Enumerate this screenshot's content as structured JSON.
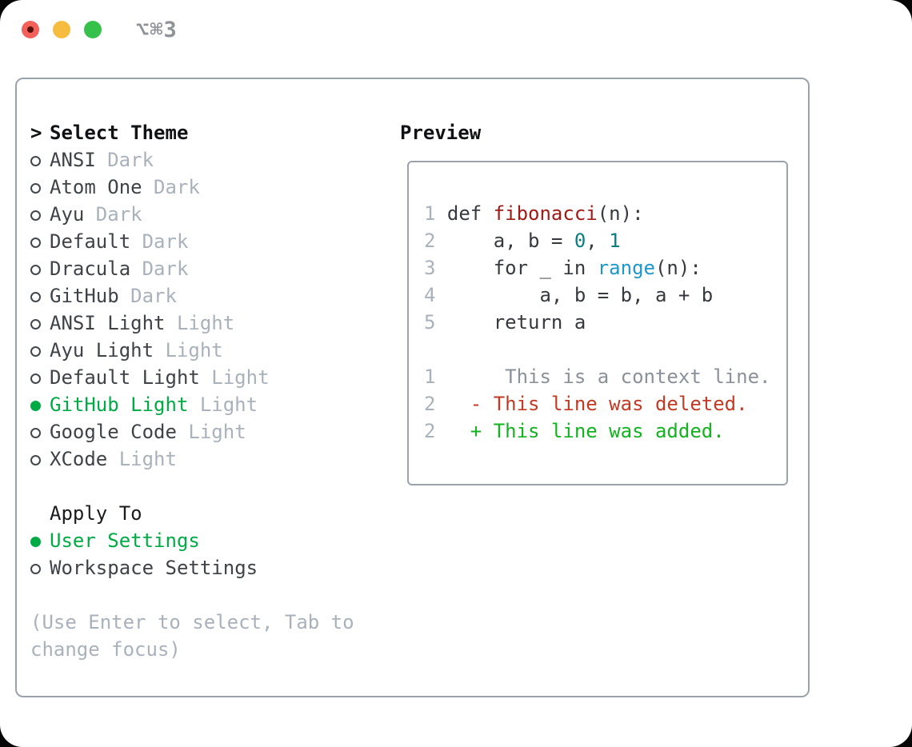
{
  "titlebar": {
    "shortcut": "⌥⌘3"
  },
  "select_theme": {
    "header_prefix": ">",
    "header": "Select Theme",
    "items": [
      {
        "label": "ANSI",
        "badge": "Dark",
        "selected": false
      },
      {
        "label": "Atom One",
        "badge": "Dark",
        "selected": false
      },
      {
        "label": "Ayu",
        "badge": "Dark",
        "selected": false
      },
      {
        "label": "Default",
        "badge": "Dark",
        "selected": false
      },
      {
        "label": "Dracula",
        "badge": "Dark",
        "selected": false
      },
      {
        "label": "GitHub",
        "badge": "Dark",
        "selected": false
      },
      {
        "label": "ANSI Light",
        "badge": "Light",
        "selected": false
      },
      {
        "label": "Ayu Light",
        "badge": "Light",
        "selected": false
      },
      {
        "label": "Default Light",
        "badge": "Light",
        "selected": false
      },
      {
        "label": "GitHub Light",
        "badge": "Light",
        "selected": true
      },
      {
        "label": "Google Code",
        "badge": "Light",
        "selected": false
      },
      {
        "label": "XCode",
        "badge": "Light",
        "selected": false
      }
    ]
  },
  "apply_to": {
    "header": "Apply To",
    "items": [
      {
        "label": "User Settings",
        "selected": true
      },
      {
        "label": "Workspace Settings",
        "selected": false
      }
    ]
  },
  "footer": {
    "hint": "(Use Enter to select, Tab to change focus)"
  },
  "preview": {
    "header": "Preview",
    "code_lines": [
      {
        "num": "1",
        "segments": [
          {
            "text": "def ",
            "style": "plain"
          },
          {
            "text": "fibonacci",
            "style": "func"
          },
          {
            "text": "(n):",
            "style": "plain"
          }
        ]
      },
      {
        "num": "2",
        "segments": [
          {
            "text": "    a, b = ",
            "style": "plain"
          },
          {
            "text": "0",
            "style": "num"
          },
          {
            "text": ", ",
            "style": "plain"
          },
          {
            "text": "1",
            "style": "num"
          }
        ]
      },
      {
        "num": "3",
        "segments": [
          {
            "text": "    for _ in ",
            "style": "plain"
          },
          {
            "text": "range",
            "style": "builtin"
          },
          {
            "text": "(n):",
            "style": "plain"
          }
        ]
      },
      {
        "num": "4",
        "segments": [
          {
            "text": "        a, b = b, a + b",
            "style": "plain"
          }
        ]
      },
      {
        "num": "5",
        "segments": [
          {
            "text": "    return a",
            "style": "plain"
          }
        ]
      }
    ],
    "diff_lines": [
      {
        "num": "1",
        "segments": [
          {
            "text": "     This is a context line.",
            "style": "context"
          }
        ]
      },
      {
        "num": "2",
        "segments": [
          {
            "text": "  - This line was deleted.",
            "style": "deleted"
          }
        ]
      },
      {
        "num": "2",
        "segments": [
          {
            "text": "  + This line was added.",
            "style": "added"
          }
        ]
      }
    ]
  },
  "colors": {
    "accent_green": "#00ab45",
    "traffic_red": "#f4605a",
    "traffic_red_dot": "#57100c",
    "traffic_yellow": "#f6bc40",
    "traffic_green": "#36c14a",
    "border_gray": "#9aa2ab",
    "header_black": "#101214",
    "text_dark": "#3f4347",
    "muted_gray": "#a9b2bb",
    "code_func_red": "#a01b16",
    "code_num_teal": "#0c7e80",
    "code_builtin_blue": "#1e97ca",
    "diff_context_gray": "#8b9199",
    "diff_deleted_red": "#c23a24",
    "diff_added_green": "#13b31f"
  }
}
